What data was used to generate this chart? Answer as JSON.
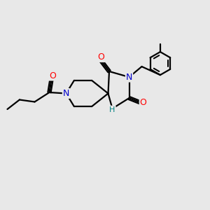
{
  "bg_color": "#e8e8e8",
  "atom_colors": {
    "C": "#000000",
    "N": "#0000cc",
    "O": "#ff0000",
    "NH": "#008080"
  },
  "bond_color": "#000000",
  "bond_width": 1.6,
  "figsize": [
    3.0,
    3.0
  ],
  "dpi": 100
}
